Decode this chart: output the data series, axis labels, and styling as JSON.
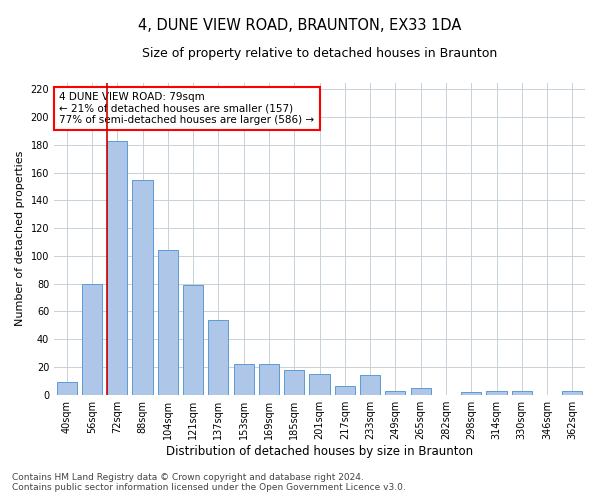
{
  "title1": "4, DUNE VIEW ROAD, BRAUNTON, EX33 1DA",
  "title2": "Size of property relative to detached houses in Braunton",
  "xlabel": "Distribution of detached houses by size in Braunton",
  "ylabel": "Number of detached properties",
  "footnote1": "Contains HM Land Registry data © Crown copyright and database right 2024.",
  "footnote2": "Contains public sector information licensed under the Open Government Licence v3.0.",
  "annotation_title": "4 DUNE VIEW ROAD: 79sqm",
  "annotation_line2": "← 21% of detached houses are smaller (157)",
  "annotation_line3": "77% of semi-detached houses are larger (586) →",
  "bar_labels": [
    "40sqm",
    "56sqm",
    "72sqm",
    "88sqm",
    "104sqm",
    "121sqm",
    "137sqm",
    "153sqm",
    "169sqm",
    "185sqm",
    "201sqm",
    "217sqm",
    "233sqm",
    "249sqm",
    "265sqm",
    "282sqm",
    "298sqm",
    "314sqm",
    "330sqm",
    "346sqm",
    "362sqm"
  ],
  "bar_values": [
    9,
    80,
    183,
    155,
    104,
    79,
    54,
    22,
    22,
    18,
    15,
    6,
    14,
    3,
    5,
    0,
    2,
    3,
    3,
    0,
    3
  ],
  "bar_color": "#aec6e8",
  "bar_edge_color": "#5b9bd5",
  "marker_color": "#cc0000",
  "bg_color": "#ffffff",
  "grid_color": "#c8d0d8",
  "ylim": [
    0,
    225
  ],
  "yticks": [
    0,
    20,
    40,
    60,
    80,
    100,
    120,
    140,
    160,
    180,
    200,
    220
  ],
  "title1_fontsize": 10.5,
  "title2_fontsize": 9,
  "xlabel_fontsize": 8.5,
  "ylabel_fontsize": 8,
  "tick_fontsize": 7,
  "annot_fontsize": 7.5,
  "footnote_fontsize": 6.5
}
